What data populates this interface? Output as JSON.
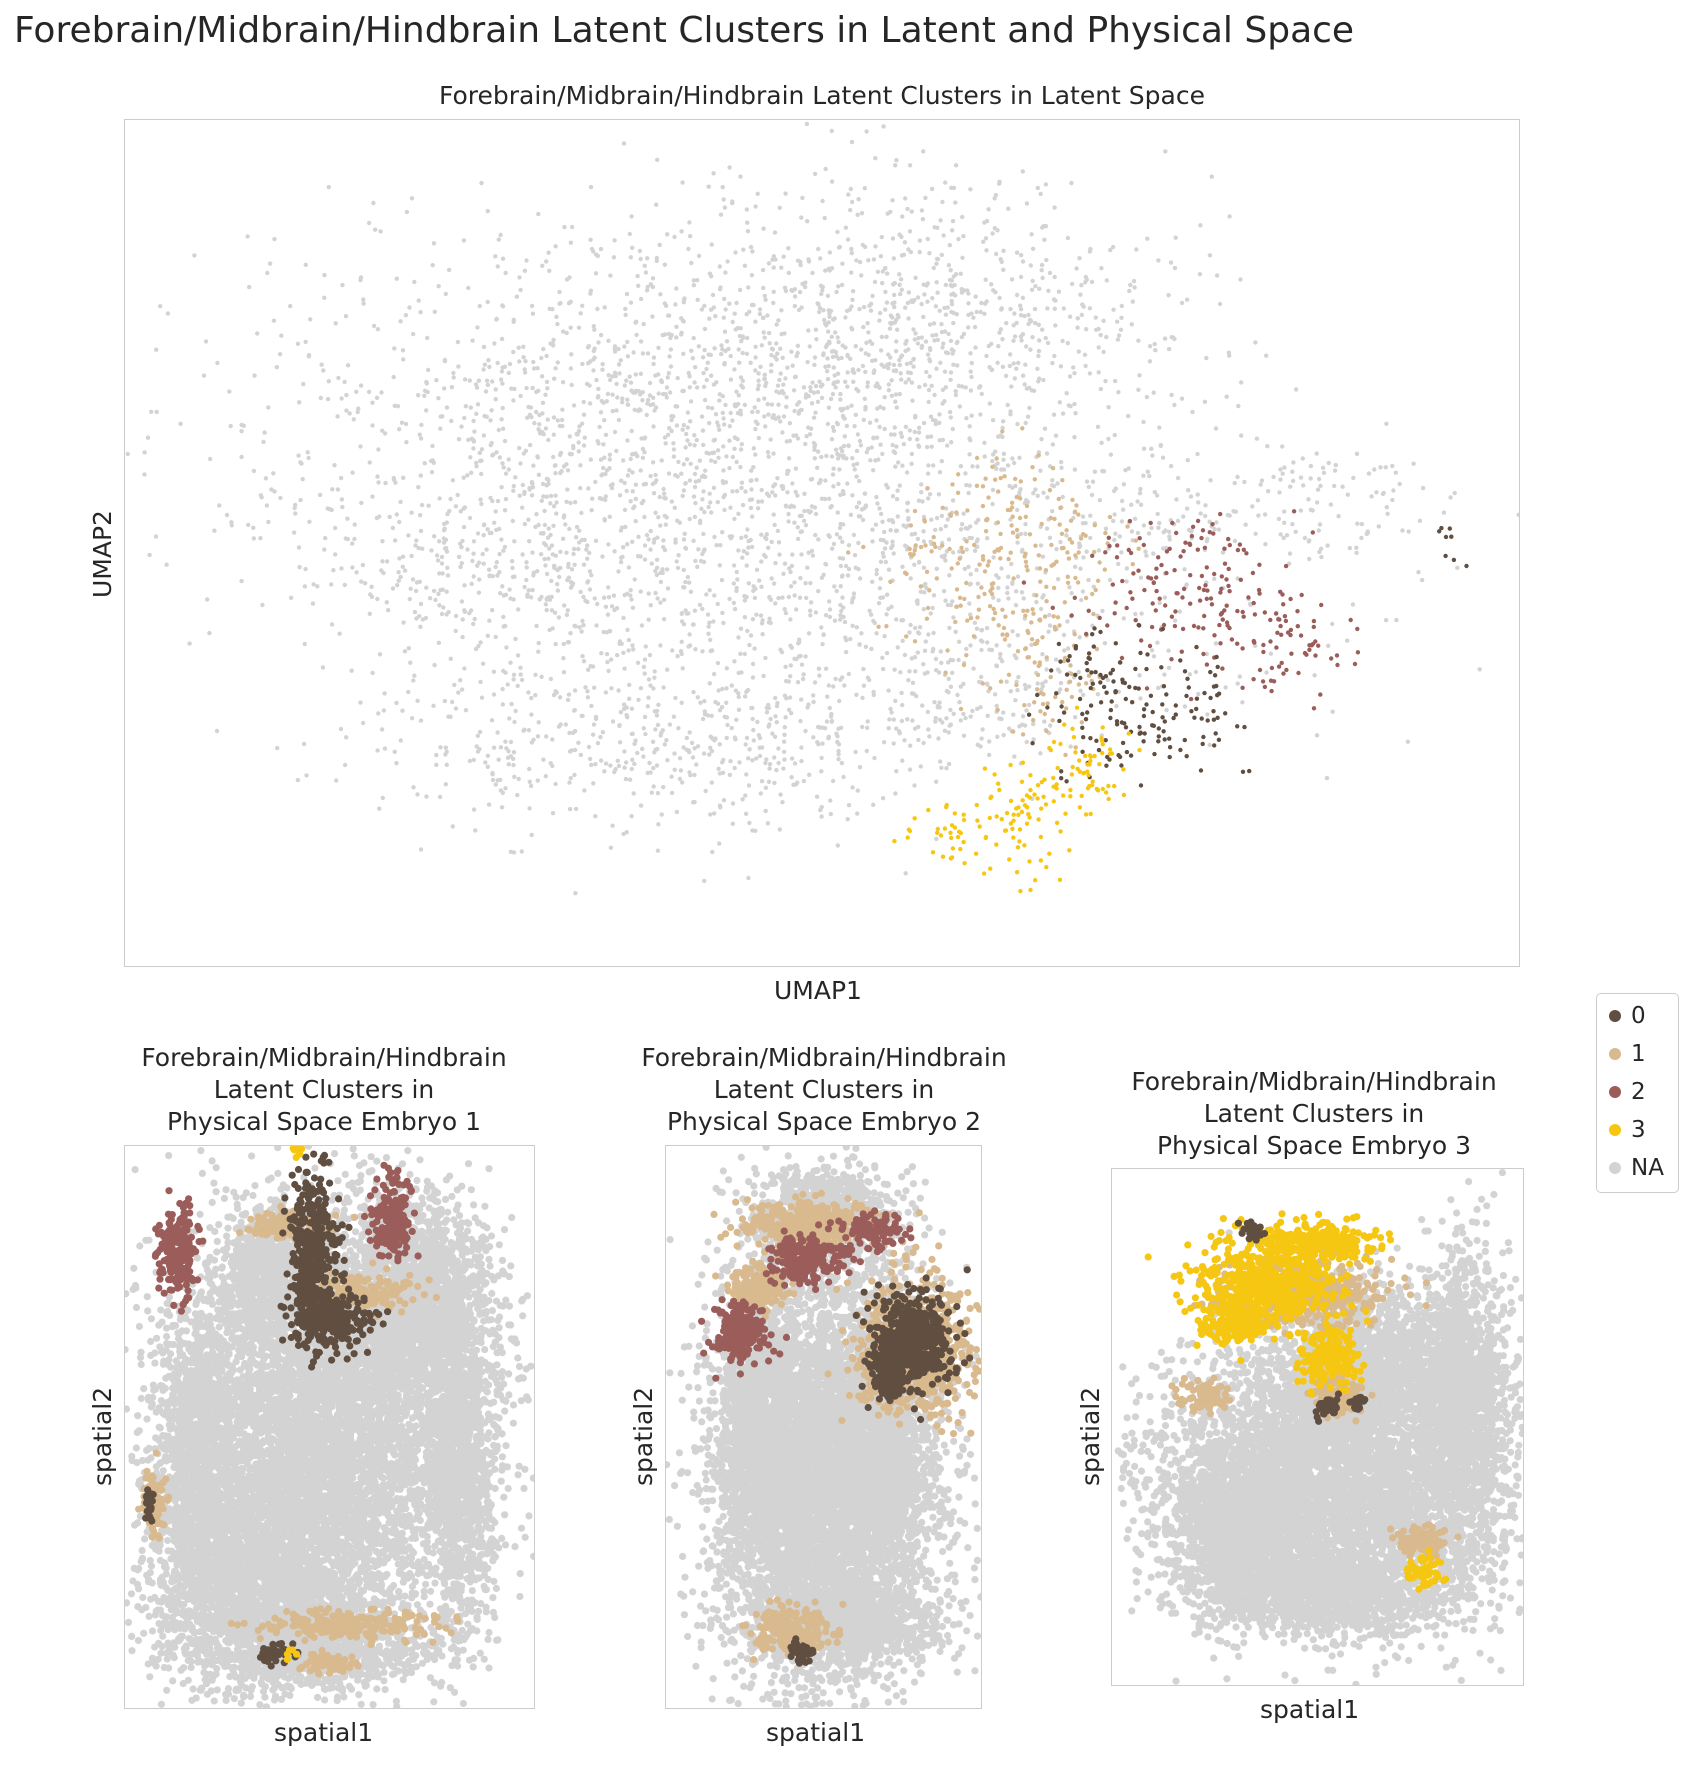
{
  "figure": {
    "title": "Forebrain/Midbrain/Hindbrain Latent Clusters in Latent and Physical Space"
  },
  "chart_data": [
    {
      "type": "scatter",
      "title": "Forebrain/Midbrain/Hindbrain Latent Clusters in Latent Space",
      "xlabel": "UMAP1",
      "ylabel": "UMAP2",
      "grid": false,
      "ticks": false,
      "xlim": [
        0,
        100
      ],
      "ylim": [
        0,
        100
      ],
      "series": [
        {
          "name": "NA",
          "color": "#d3d3d3",
          "regions": [
            [
              35,
              62,
              30,
              24
            ],
            [
              48,
              70,
              24,
              20
            ],
            [
              60,
              78,
              18,
              15
            ],
            [
              55,
              44,
              28,
              18
            ],
            [
              25,
              47,
              12,
              10
            ],
            [
              32,
              28,
              16,
              14
            ],
            [
              46,
              26,
              12,
              10
            ],
            [
              78,
              52,
              16,
              5
            ],
            [
              88,
              58,
              8,
              3
            ],
            [
              60,
              30,
              8,
              8
            ]
          ]
        },
        {
          "name": "1",
          "color": "#d9b98e",
          "regions": [
            [
              60,
              46,
              6,
              10
            ],
            [
              65,
              40,
              5,
              8
            ],
            [
              68,
              50,
              5,
              6
            ],
            [
              66,
              32,
              4,
              6
            ],
            [
              63,
              56,
              4,
              6
            ]
          ]
        },
        {
          "name": "2",
          "color": "#9b5d5a",
          "regions": [
            [
              74,
              44,
              8,
              6
            ],
            [
              80,
              40,
              6,
              8
            ],
            [
              85,
              37,
              3,
              5
            ],
            [
              78,
              50,
              7,
              3
            ]
          ]
        },
        {
          "name": "0",
          "color": "#604e41",
          "regions": [
            [
              71,
              31,
              6,
              10
            ],
            [
              76,
              30,
              4,
              8
            ],
            [
              69,
              36,
              3,
              4
            ],
            [
              95,
              51,
              1.2,
              4
            ]
          ]
        },
        {
          "name": "3",
          "color": "#f6c712",
          "regions": [
            [
              60,
              16,
              7,
              4
            ],
            [
              65,
              20,
              6,
              5
            ],
            [
              68,
              25,
              4,
              6
            ],
            [
              64,
              11,
              3,
              3
            ],
            [
              70,
              22,
              3,
              4
            ]
          ]
        }
      ]
    },
    {
      "type": "scatter",
      "title": "Forebrain/Midbrain/Hindbrain\nLatent Clusters in\nPhysical Space Embryo 1",
      "xlabel": "spatial1",
      "ylabel": "spatial2",
      "grid": false,
      "ticks": false,
      "xlim": [
        0,
        100
      ],
      "ylim": [
        0,
        100
      ],
      "series": [
        {
          "name": "NA",
          "color": "#d3d3d3",
          "regions": [
            [
              50,
              50,
              38,
              34
            ],
            [
              32,
              22,
              26,
              18
            ],
            [
              70,
              74,
              20,
              18
            ],
            [
              35,
              78,
              12,
              12
            ],
            [
              18,
              45,
              10,
              28
            ],
            [
              82,
              42,
              8,
              30
            ],
            [
              50,
              10,
              25,
              6
            ]
          ]
        },
        {
          "name": "1",
          "color": "#d9b98e",
          "regions": [
            [
              40,
              86,
              12,
              3
            ],
            [
              60,
              74,
              12,
              3
            ],
            [
              55,
              15,
              22,
              2.5
            ],
            [
              7,
              36,
              3,
              6
            ],
            [
              50,
              8,
              8,
              2
            ]
          ]
        },
        {
          "name": "2",
          "color": "#9b5d5a",
          "regions": [
            [
              13,
              81,
              5,
              9
            ],
            [
              65,
              88,
              5,
              8
            ]
          ]
        },
        {
          "name": "0",
          "color": "#604e41",
          "regions": [
            [
              46,
              80,
              6,
              16
            ],
            [
              50,
              69,
              10,
              5
            ],
            [
              6,
              36,
              1.5,
              3
            ],
            [
              37,
              10,
              4,
              2
            ]
          ]
        },
        {
          "name": "3",
          "color": "#f6c712",
          "regions": [
            [
              42,
              99,
              1.5,
              1
            ],
            [
              40,
              10,
              1.2,
              1
            ]
          ]
        }
      ]
    },
    {
      "type": "scatter",
      "title": "Forebrain/Midbrain/Hindbrain\nLatent Clusters in\nPhysical Space Embryo 2",
      "xlabel": "spatial1",
      "ylabel": "spatial2",
      "grid": false,
      "ticks": false,
      "xlim": [
        0,
        100
      ],
      "ylim": [
        0,
        100
      ],
      "series": [
        {
          "name": "NA",
          "color": "#d3d3d3",
          "regions": [
            [
              50,
              42,
              34,
              36
            ],
            [
              50,
              88,
              22,
              8
            ],
            [
              30,
              48,
              12,
              24
            ],
            [
              70,
              50,
              12,
              24
            ],
            [
              55,
              15,
              30,
              8
            ]
          ]
        },
        {
          "name": "1",
          "color": "#d9b98e",
          "regions": [
            [
              45,
              86,
              22,
              4
            ],
            [
              30,
              75,
              10,
              4
            ],
            [
              79,
              64,
              17,
              11
            ],
            [
              40,
              14,
              12,
              4
            ]
          ]
        },
        {
          "name": "2",
          "color": "#9b5d5a",
          "regions": [
            [
              23,
              67,
              9,
              5
            ],
            [
              45,
              80,
              12,
              4
            ],
            [
              66,
              85,
              9,
              3
            ]
          ]
        },
        {
          "name": "0",
          "color": "#604e41",
          "regions": [
            [
              78,
              65,
              12,
              9
            ],
            [
              70,
              60,
              6,
              5
            ],
            [
              43,
              10,
              4,
              2
            ]
          ]
        }
      ]
    },
    {
      "type": "scatter",
      "title": "Forebrain/Midbrain/Hindbrain\nLatent Clusters in\nPhysical Space Embryo 3",
      "xlabel": "spatial1",
      "ylabel": "spatial2",
      "grid": false,
      "ticks": false,
      "xlim": [
        0,
        100
      ],
      "ylim": [
        0,
        100
      ],
      "series": [
        {
          "name": "NA",
          "color": "#d3d3d3",
          "regions": [
            [
              52,
              40,
              40,
              26
            ],
            [
              62,
              62,
              20,
              14
            ],
            [
              85,
              55,
              12,
              30
            ],
            [
              30,
              30,
              16,
              16
            ],
            [
              55,
              18,
              30,
              8
            ]
          ]
        },
        {
          "name": "1",
          "color": "#d9b98e",
          "regions": [
            [
              46,
              76,
              20,
              6
            ],
            [
              55,
              56,
              6,
              4
            ],
            [
              22,
              56,
              6,
              3
            ],
            [
              75,
              28,
              6,
              3
            ]
          ]
        },
        {
          "name": "3",
          "color": "#f6c712",
          "regions": [
            [
              38,
              78,
              16,
              8
            ],
            [
              50,
              86,
              14,
              4
            ],
            [
              30,
              70,
              8,
              4
            ],
            [
              53,
              64,
              7,
              6
            ],
            [
              76,
              22,
              4,
              3
            ]
          ]
        },
        {
          "name": "0",
          "color": "#604e41",
          "regions": [
            [
              53,
              54,
              4,
              2
            ],
            [
              34,
              88,
              3,
              2
            ],
            [
              60,
              55,
              2,
              2
            ]
          ]
        }
      ]
    }
  ],
  "legend": {
    "items": [
      {
        "label": "0",
        "color": "#604e41"
      },
      {
        "label": "1",
        "color": "#d9b98e"
      },
      {
        "label": "2",
        "color": "#9b5d5a"
      },
      {
        "label": "3",
        "color": "#f6c712"
      },
      {
        "label": "NA",
        "color": "#d3d3d3"
      }
    ]
  }
}
